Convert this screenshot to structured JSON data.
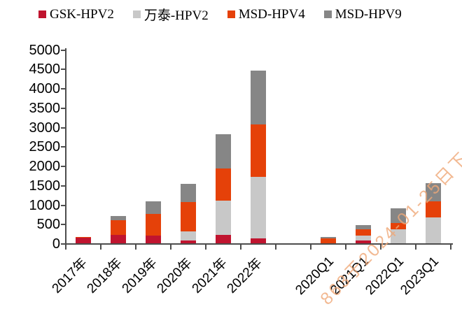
{
  "legend": {
    "items": [
      {
        "label": "GSK-HPV2",
        "color": "#c0142f",
        "icon": "gsk-hpv2-swatch"
      },
      {
        "label": "万泰-HPV2",
        "color": "#c8c8c8",
        "icon": "wantai-hpv2-swatch"
      },
      {
        "label": "MSD-HPV4",
        "color": "#e54109",
        "icon": "msd-hpv4-swatch"
      },
      {
        "label": "MSD-HPV9",
        "color": "#868686",
        "icon": "msd-hpv9-swatch"
      }
    ]
  },
  "watermark": {
    "text": "863于2024-01-25日下",
    "color": "#f0a878"
  },
  "chart_data": {
    "type": "bar",
    "stacked": true,
    "title": "",
    "xlabel": "",
    "ylabel": "",
    "categories": [
      "2017年",
      "2018年",
      "2019年",
      "2020年",
      "2021年",
      "2022年",
      "2020Q1",
      "2021Q1",
      "2022Q1",
      "2023Q1"
    ],
    "slots": [
      0,
      1,
      2,
      3,
      4,
      5,
      7,
      8,
      9,
      10
    ],
    "series": [
      {
        "name": "GSK-HPV2",
        "color": "#c0142f",
        "values": [
          140,
          210,
          200,
          75,
          220,
          120,
          0,
          75,
          0,
          0
        ]
      },
      {
        "name": "万泰-HPV2",
        "color": "#c8c8c8",
        "values": [
          0,
          0,
          0,
          235,
          880,
          1590,
          0,
          115,
          360,
          660
        ]
      },
      {
        "name": "MSD-HPV4",
        "color": "#e54109",
        "values": [
          25,
          380,
          555,
          760,
          820,
          1360,
          120,
          170,
          160,
          430
        ]
      },
      {
        "name": "MSD-HPV9",
        "color": "#868686",
        "values": [
          0,
          120,
          330,
          470,
          890,
          1380,
          40,
          100,
          380,
          460
        ]
      }
    ],
    "totals": [
      165,
      710,
      1085,
      1540,
      2810,
      4450,
      160,
      460,
      900,
      1550
    ],
    "ylim": [
      0,
      5000
    ],
    "ytick_step": 500,
    "ytick_labels": [
      "0",
      "500",
      "1000",
      "1500",
      "2000",
      "2500",
      "3000",
      "3500",
      "4000",
      "4500",
      "5000"
    ],
    "grid": false,
    "legend_position": "top",
    "axis_color": "#4d4d4d"
  }
}
